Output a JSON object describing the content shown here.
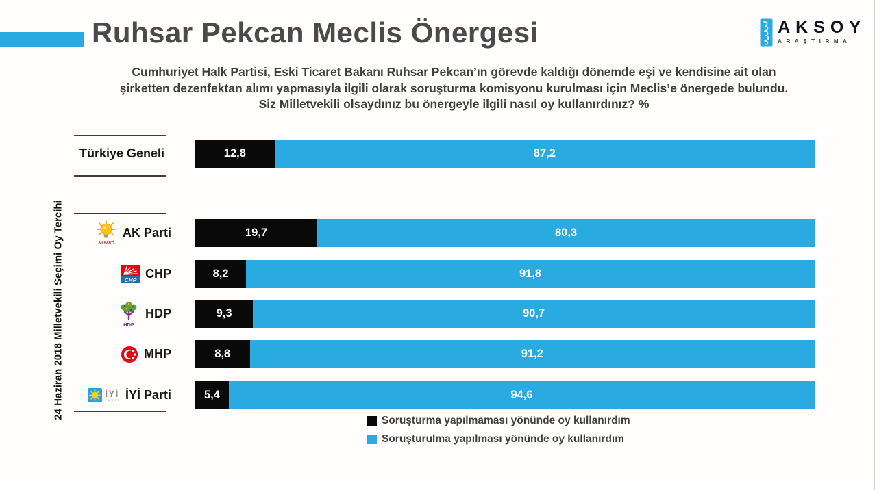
{
  "header": {
    "title": "Ruhsar Pekcan Meclis Önergesi",
    "subtitle_lines": [
      "Cumhuriyet Halk Partisi, Eski Ticaret Bakanı Ruhsar Pekcan’ın görevde kaldığı dönemde eşi ve kendisine ait olan",
      "şirketten dezenfektan alımı yapmasıyla ilgili olarak soruşturma komisyonu kurulması için Meclis’e önergede bulundu.",
      "Siz Milletvekili olsaydınız bu önergeyle ilgili nasıl oy kullanırdınız? %"
    ],
    "brand": {
      "name": "AKSOY",
      "subname": "ARAŞTIRMA"
    }
  },
  "chart_data": {
    "type": "bar",
    "stacked": true,
    "orientation": "horizontal",
    "unit": "%",
    "xlim": [
      0,
      100
    ],
    "axis_label": "24 Haziran 2018 Milletvekili Seçimi Oy Tercihi",
    "legend_position": "bottom",
    "series": [
      {
        "name": "Soruşturma yapılmaması yönünde oy kullanırdım",
        "color": "#0a0a0a"
      },
      {
        "name": "Soruşturulma yapılması yönünde oy kullanırdım",
        "color": "#29abe2"
      }
    ],
    "rows": [
      {
        "label": "Türkiye Geneli",
        "values": [
          12.8,
          87.2
        ],
        "display": [
          "12,8",
          "87,2"
        ]
      },
      {
        "label": "AK Parti",
        "values": [
          19.7,
          80.3
        ],
        "display": [
          "19,7",
          "80,3"
        ]
      },
      {
        "label": "CHP",
        "values": [
          8.2,
          91.8
        ],
        "display": [
          "8,2",
          "91,8"
        ]
      },
      {
        "label": "HDP",
        "values": [
          9.3,
          90.7
        ],
        "display": [
          "9,3",
          "90,7"
        ]
      },
      {
        "label": "MHP",
        "values": [
          8.8,
          91.2
        ],
        "display": [
          "8,8",
          "91,2"
        ]
      },
      {
        "label": "İYİ Parti",
        "values": [
          5.4,
          94.6
        ],
        "display": [
          "5,4",
          "94,6"
        ]
      }
    ]
  },
  "logos": {
    "akp_caption": "AK PARTİ",
    "chp_caption": "CHP",
    "hdp_caption": "HDP",
    "iyi_caption": "İYİ",
    "iyi_sub": "PARTİ"
  },
  "colors": {
    "accent_blue": "#29abe2",
    "bar_black": "#0a0a0a",
    "title_gray": "#4a4a4a"
  }
}
